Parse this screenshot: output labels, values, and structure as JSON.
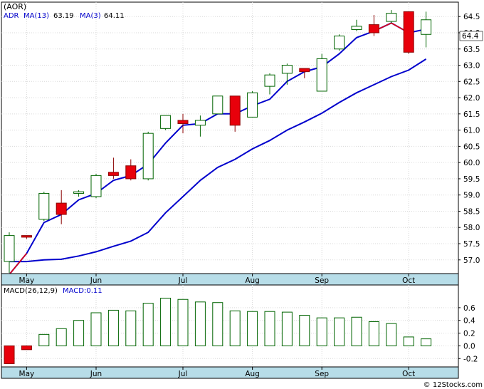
{
  "header": {
    "ticker": "(AOR)"
  },
  "price_legend": {
    "series": "ADR",
    "ma13_label": "MA(13)",
    "ma13_value": "63.19",
    "ma3_label": "MA(3)",
    "ma3_value": "64.11"
  },
  "macd_legend": {
    "label": "MACD(26,12,9)",
    "value_label": "MACD:0.11"
  },
  "footer": {
    "credit": "© 12Stocks.com"
  },
  "last_price_label": "64.4",
  "colors": {
    "up_fill": "#ffffff",
    "up_stroke": "#006400",
    "down_fill": "#e8000b",
    "ma13": "#0000cc",
    "ma3": "#0000cc",
    "ma3_connector": "#e8000b",
    "axis_band": "#b7dde8",
    "macd_bar": "#006400"
  },
  "chart_data": [
    {
      "type": "candlestick",
      "title": "(AOR)",
      "x_labels": [
        "May",
        "Jun",
        "Jul",
        "Aug",
        "Sep",
        "Oct"
      ],
      "y_ticks": [
        "57.0",
        "57.5",
        "58.0",
        "58.5",
        "59.0",
        "59.5",
        "60.0",
        "60.5",
        "61.0",
        "61.5",
        "62.0",
        "62.5",
        "63.0",
        "63.5",
        "64.0",
        "64.5"
      ],
      "ylim": [
        56.6,
        64.9
      ],
      "grid": true,
      "candles": [
        {
          "o": 56.95,
          "h": 57.85,
          "l": 56.6,
          "c": 57.75
        },
        {
          "o": 57.75,
          "h": 57.75,
          "l": 57.65,
          "c": 57.7
        },
        {
          "o": 58.25,
          "h": 59.1,
          "l": 58.2,
          "c": 59.05
        },
        {
          "o": 58.75,
          "h": 59.15,
          "l": 58.1,
          "c": 58.4
        },
        {
          "o": 59.05,
          "h": 59.15,
          "l": 58.95,
          "c": 59.1
        },
        {
          "o": 58.95,
          "h": 59.65,
          "l": 58.9,
          "c": 59.6
        },
        {
          "o": 59.7,
          "h": 60.15,
          "l": 59.5,
          "c": 59.6
        },
        {
          "o": 59.9,
          "h": 60.1,
          "l": 59.45,
          "c": 59.5
        },
        {
          "o": 59.5,
          "h": 60.95,
          "l": 59.45,
          "c": 60.9
        },
        {
          "o": 61.05,
          "h": 61.45,
          "l": 61.0,
          "c": 61.45
        },
        {
          "o": 61.3,
          "h": 61.5,
          "l": 60.9,
          "c": 61.2
        },
        {
          "o": 61.15,
          "h": 61.45,
          "l": 60.8,
          "c": 61.3
        },
        {
          "o": 61.5,
          "h": 62.05,
          "l": 61.5,
          "c": 62.05
        },
        {
          "o": 62.05,
          "h": 62.05,
          "l": 60.95,
          "c": 61.15
        },
        {
          "o": 61.4,
          "h": 62.2,
          "l": 61.4,
          "c": 62.15
        },
        {
          "o": 62.35,
          "h": 62.75,
          "l": 62.1,
          "c": 62.7
        },
        {
          "o": 62.75,
          "h": 63.05,
          "l": 62.4,
          "c": 63.0
        },
        {
          "o": 62.9,
          "h": 62.9,
          "l": 62.6,
          "c": 62.8
        },
        {
          "o": 62.2,
          "h": 63.35,
          "l": 62.2,
          "c": 63.2
        },
        {
          "o": 63.5,
          "h": 63.95,
          "l": 63.45,
          "c": 63.9
        },
        {
          "o": 64.1,
          "h": 64.4,
          "l": 64.05,
          "c": 64.2
        },
        {
          "o": 64.25,
          "h": 64.55,
          "l": 63.9,
          "c": 64.0
        },
        {
          "o": 64.35,
          "h": 64.7,
          "l": 64.3,
          "c": 64.6
        },
        {
          "o": 64.65,
          "h": 64.65,
          "l": 63.35,
          "c": 63.4
        },
        {
          "o": 63.95,
          "h": 64.65,
          "l": 63.55,
          "c": 64.4
        }
      ],
      "series": [
        {
          "name": "MA(3)",
          "values": [
            56.55,
            57.2,
            58.15,
            58.4,
            58.85,
            59.05,
            59.45,
            59.6,
            59.95,
            60.6,
            61.15,
            61.2,
            61.5,
            61.5,
            61.75,
            61.95,
            62.5,
            62.8,
            62.95,
            63.35,
            63.85,
            64.05,
            64.3,
            64.0,
            64.11
          ]
        },
        {
          "name": "MA(13)",
          "values": [
            56.95,
            56.95,
            57.0,
            57.02,
            57.12,
            57.25,
            57.42,
            57.58,
            57.85,
            58.45,
            58.95,
            59.45,
            59.85,
            60.1,
            60.42,
            60.68,
            61.0,
            61.25,
            61.52,
            61.85,
            62.15,
            62.4,
            62.65,
            62.85,
            63.19
          ]
        }
      ]
    },
    {
      "type": "bar",
      "title": "MACD(26,12,9)",
      "x_labels": [
        "May",
        "Jun",
        "Jul",
        "Aug",
        "Sep",
        "Oct"
      ],
      "y_ticks": [
        "-0.2",
        "0.0",
        "0.2",
        "0.4",
        "0.6"
      ],
      "ylim": [
        -0.32,
        0.8
      ],
      "series": [
        {
          "name": "MACD:0.11",
          "values": [
            -0.28,
            -0.06,
            0.18,
            0.27,
            0.4,
            0.52,
            0.56,
            0.55,
            0.67,
            0.75,
            0.73,
            0.69,
            0.68,
            0.55,
            0.54,
            0.54,
            0.53,
            0.48,
            0.44,
            0.44,
            0.45,
            0.38,
            0.35,
            0.14,
            0.11
          ]
        }
      ]
    }
  ]
}
